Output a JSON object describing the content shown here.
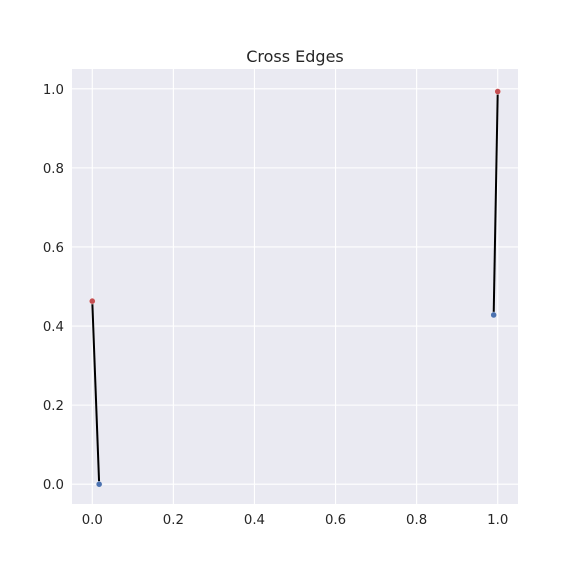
{
  "chart_data": {
    "type": "scatter",
    "title": "Cross Edges",
    "xlabel": "",
    "ylabel": "",
    "xlim": [
      -0.05,
      1.05
    ],
    "ylim": [
      -0.05,
      1.05
    ],
    "xticks": [
      0.0,
      0.2,
      0.4,
      0.6,
      0.8,
      1.0
    ],
    "yticks": [
      0.0,
      0.2,
      0.4,
      0.6,
      0.8,
      1.0
    ],
    "xtick_labels": [
      "0.0",
      "0.2",
      "0.4",
      "0.6",
      "0.8",
      "1.0"
    ],
    "ytick_labels": [
      "0.0",
      "0.2",
      "0.4",
      "0.6",
      "0.8",
      "1.0"
    ],
    "grid": true,
    "edges": [
      {
        "from": [
          0.0,
          0.463
        ],
        "to": [
          0.017,
          0.0
        ]
      },
      {
        "from": [
          1.0,
          0.993
        ],
        "to": [
          0.99,
          0.428
        ]
      }
    ],
    "series": [
      {
        "color": "#c44e52",
        "points": [
          [
            0.0,
            0.463
          ],
          [
            1.0,
            0.993
          ]
        ]
      },
      {
        "color": "#4c72b0",
        "points": [
          [
            0.017,
            0.0
          ],
          [
            0.99,
            0.428
          ]
        ]
      }
    ],
    "colors": {
      "background": "#eaeaf2",
      "grid": "#ffffff",
      "edge": "#000000"
    }
  }
}
